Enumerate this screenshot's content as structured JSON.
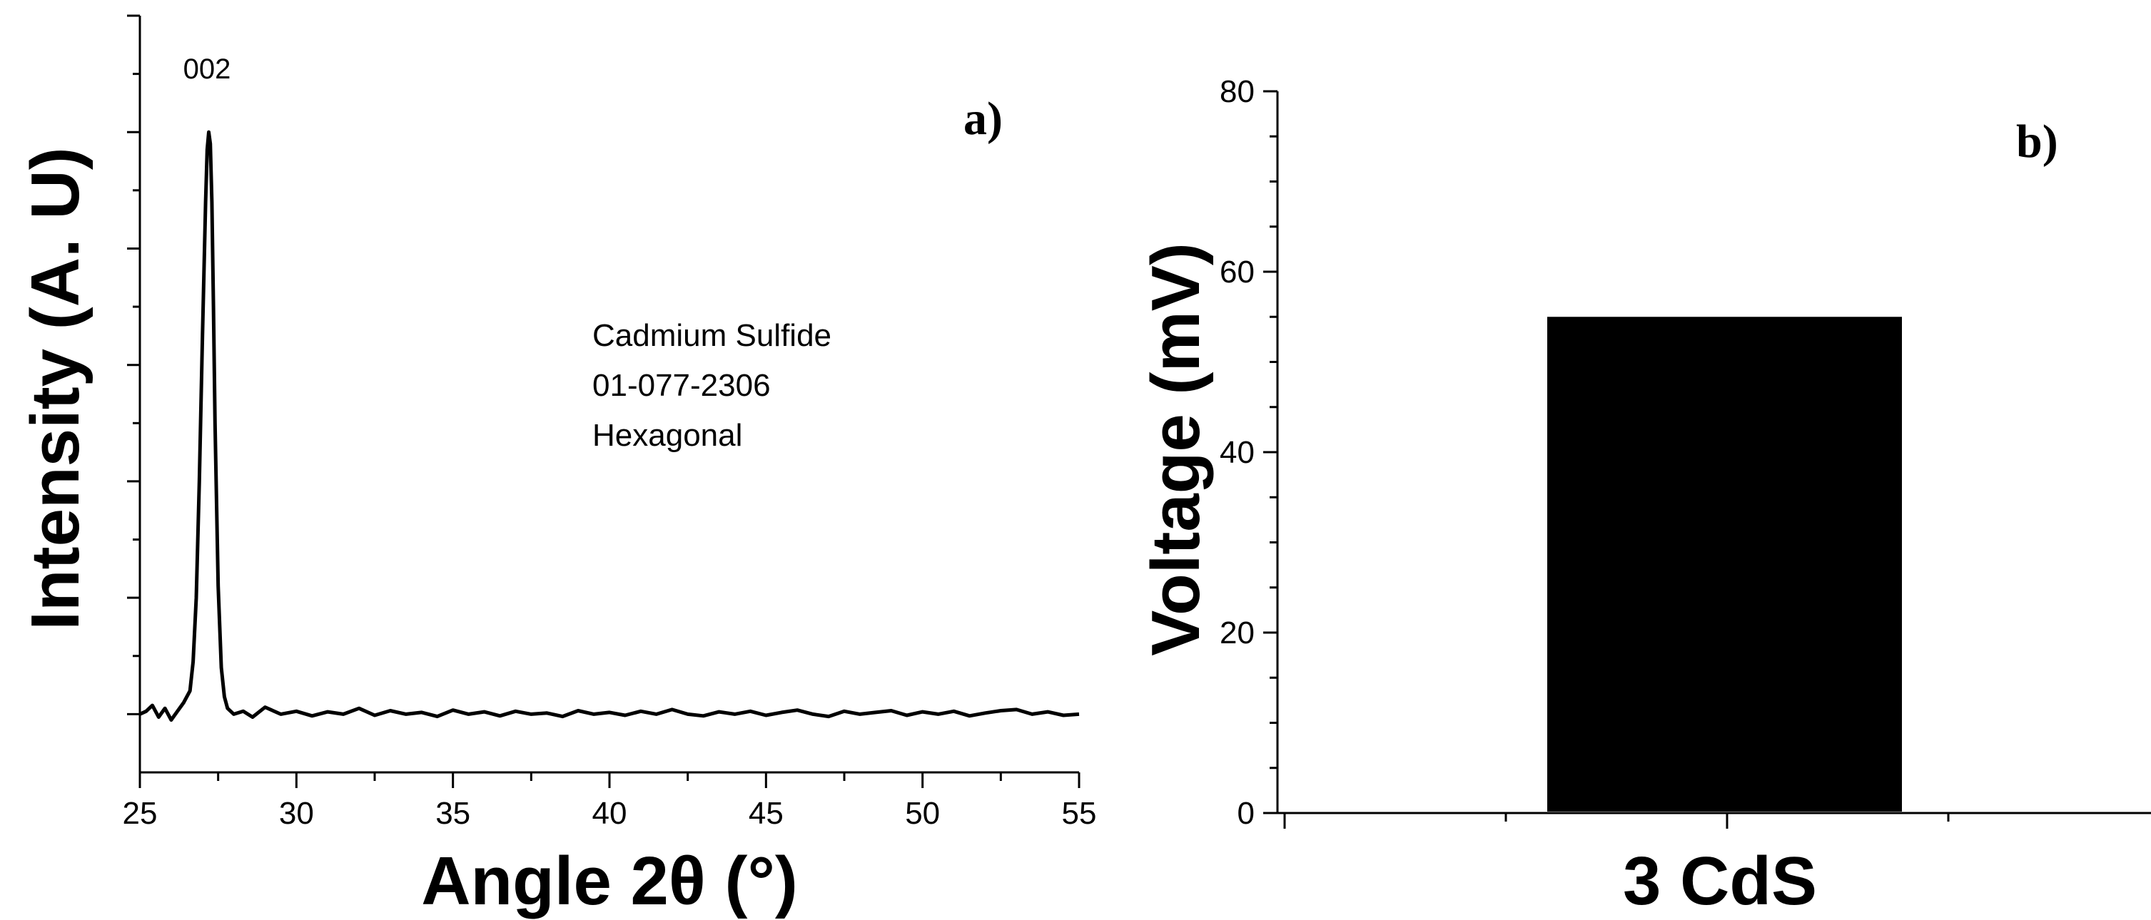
{
  "chart_data": [
    {
      "type": "line",
      "panel_label": "a)",
      "xlabel": "Angle 2θ (°)",
      "ylabel": "Intensity (A. U)",
      "xlim": [
        25,
        55
      ],
      "ylim": [
        -0.1,
        1.2
      ],
      "x_ticks": [
        25,
        30,
        35,
        40,
        45,
        50,
        55
      ],
      "y_tick_labels_shown": false,
      "grid": false,
      "legend": "none",
      "annotations": {
        "peak_label": "002",
        "reference_lines": [
          "Cadmium Sulfide",
          "01-077-2306",
          "Hexagonal"
        ]
      },
      "series": [
        {
          "color": "#000000",
          "x": [
            25.0,
            25.2,
            25.4,
            25.6,
            25.8,
            26.0,
            26.2,
            26.4,
            26.6,
            26.7,
            26.8,
            26.9,
            27.0,
            27.1,
            27.15,
            27.2,
            27.25,
            27.3,
            27.35,
            27.4,
            27.5,
            27.6,
            27.7,
            27.8,
            28.0,
            28.3,
            28.6,
            29.0,
            29.5,
            30.0,
            30.5,
            31.0,
            31.5,
            32.0,
            32.5,
            33.0,
            33.5,
            34.0,
            34.5,
            35.0,
            35.5,
            36.0,
            36.5,
            37.0,
            37.5,
            38.0,
            38.5,
            39.0,
            39.5,
            40.0,
            40.5,
            41.0,
            41.5,
            42.0,
            42.5,
            43.0,
            43.5,
            44.0,
            44.5,
            45.0,
            45.5,
            46.0,
            46.5,
            47.0,
            47.5,
            48.0,
            48.5,
            49.0,
            49.5,
            50.0,
            50.5,
            51.0,
            51.5,
            52.0,
            52.5,
            53.0,
            53.5,
            54.0,
            54.5,
            55.0
          ],
          "y": [
            0.0,
            0.005,
            0.015,
            -0.005,
            0.01,
            -0.01,
            0.005,
            0.02,
            0.04,
            0.09,
            0.2,
            0.4,
            0.65,
            0.88,
            0.97,
            1.0,
            0.98,
            0.88,
            0.7,
            0.5,
            0.22,
            0.08,
            0.03,
            0.01,
            0.0,
            0.005,
            -0.005,
            0.012,
            0.0,
            0.005,
            -0.003,
            0.004,
            0.0,
            0.01,
            -0.002,
            0.006,
            0.0,
            0.003,
            -0.004,
            0.007,
            0.0,
            0.004,
            -0.003,
            0.005,
            0.0,
            0.002,
            -0.004,
            0.006,
            0.0,
            0.003,
            -0.002,
            0.005,
            0.0,
            0.008,
            0.0,
            -0.003,
            0.004,
            0.0,
            0.005,
            -0.002,
            0.003,
            0.007,
            0.0,
            -0.004,
            0.005,
            0.0,
            0.003,
            0.006,
            -0.002,
            0.004,
            0.0,
            0.005,
            -0.003,
            0.002,
            0.006,
            0.008,
            0.0,
            0.004,
            -0.002,
            0.0
          ]
        }
      ]
    },
    {
      "type": "bar",
      "panel_label": "b)",
      "xlabel": "3 CdS",
      "ylabel": "Voltage (mV)",
      "ylim": [
        0,
        80
      ],
      "y_ticks": [
        0,
        20,
        40,
        60,
        80
      ],
      "grid": false,
      "legend": "none",
      "categories": [
        "3 CdS"
      ],
      "values": [
        55
      ],
      "bar_color": "#000000"
    }
  ]
}
